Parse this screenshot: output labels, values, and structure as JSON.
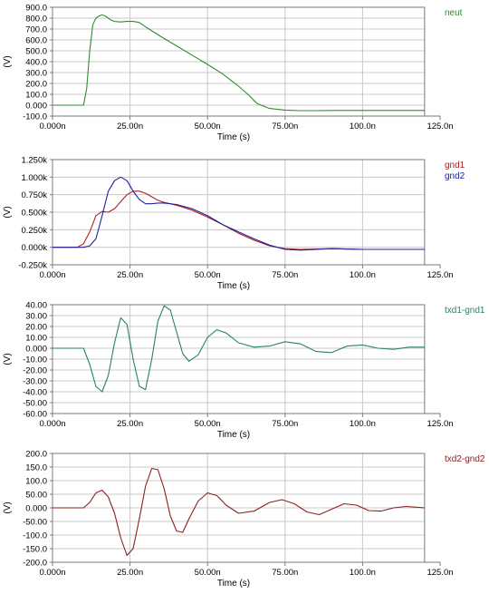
{
  "chart_data": [
    {
      "type": "line",
      "xlabel": "Time (s)",
      "ylabel": "(V)",
      "xlim": [
        0,
        120
      ],
      "ylim": [
        -100,
        900
      ],
      "xticks": [
        0,
        25,
        50,
        75,
        100,
        125
      ],
      "xtick_labels": [
        "0.000n",
        "25.00n",
        "50.00n",
        "75.00n",
        "100.0n",
        "125.0n"
      ],
      "yticks": [
        900,
        800,
        700,
        600,
        500,
        400,
        300,
        200,
        100,
        0,
        -100
      ],
      "ytick_labels": [
        "900.0",
        "800.0",
        "700.0",
        "600.0",
        "500.0",
        "400.0",
        "300.0",
        "200.0",
        "100.0",
        "0.000",
        "-100.0"
      ],
      "grid": true,
      "legend_position": "top-right outside",
      "series": [
        {
          "name": "neut",
          "color": "#2e8b2e",
          "x": [
            0,
            10,
            11,
            12,
            13,
            14,
            15,
            16,
            17,
            18,
            19,
            20,
            22,
            24,
            26,
            28,
            30,
            35,
            40,
            45,
            50,
            55,
            60,
            63,
            66,
            70,
            75,
            80,
            85,
            90,
            100,
            110,
            120
          ],
          "y": [
            0,
            0,
            150,
            500,
            740,
            800,
            820,
            830,
            820,
            800,
            780,
            770,
            765,
            770,
            770,
            760,
            720,
            630,
            545,
            460,
            375,
            285,
            175,
            100,
            15,
            -30,
            -45,
            -50,
            -50,
            -48,
            -48,
            -48,
            -48
          ]
        }
      ]
    },
    {
      "type": "line",
      "xlabel": "Time (s)",
      "ylabel": "(V)",
      "xlim": [
        0,
        120
      ],
      "ylim": [
        -0.25,
        1.25
      ],
      "xticks": [
        0,
        25,
        50,
        75,
        100,
        125
      ],
      "xtick_labels": [
        "0.000n",
        "25.00n",
        "50.00n",
        "75.00n",
        "100.0n",
        "125.0n"
      ],
      "yticks": [
        1.25,
        1.0,
        0.75,
        0.5,
        0.25,
        0,
        -0.25
      ],
      "ytick_labels": [
        "1.250k",
        "1.000k",
        "0.750k",
        "0.500k",
        "0.250k",
        "0.000k",
        "-0.250k"
      ],
      "grid": true,
      "legend_position": "top-right outside",
      "series": [
        {
          "name": "gnd1",
          "color": "#b02020",
          "x": [
            0,
            8,
            10,
            12,
            14,
            16,
            18,
            20,
            22,
            24,
            26,
            28,
            30,
            32,
            34,
            36,
            40,
            45,
            50,
            55,
            60,
            65,
            70,
            75,
            80,
            90,
            100,
            110,
            120
          ],
          "y": [
            0,
            0,
            0.05,
            0.22,
            0.45,
            0.51,
            0.5,
            0.55,
            0.65,
            0.75,
            0.8,
            0.8,
            0.77,
            0.72,
            0.67,
            0.64,
            0.6,
            0.53,
            0.43,
            0.32,
            0.2,
            0.1,
            0.02,
            -0.02,
            -0.03,
            -0.02,
            -0.03,
            -0.03,
            -0.03
          ]
        },
        {
          "name": "gnd2",
          "color": "#2020a0",
          "x": [
            0,
            10,
            12,
            14,
            16,
            18,
            20,
            22,
            24,
            26,
            28,
            30,
            32,
            34,
            36,
            38,
            40,
            45,
            50,
            55,
            60,
            65,
            70,
            75,
            80,
            90,
            100,
            110,
            120
          ],
          "y": [
            0,
            0,
            0.02,
            0.12,
            0.45,
            0.8,
            0.95,
            1.0,
            0.95,
            0.8,
            0.68,
            0.62,
            0.62,
            0.63,
            0.63,
            0.62,
            0.61,
            0.55,
            0.45,
            0.32,
            0.22,
            0.12,
            0.03,
            -0.03,
            -0.04,
            -0.02,
            -0.03,
            -0.03,
            -0.03
          ]
        }
      ]
    },
    {
      "type": "line",
      "xlabel": "Time (s)",
      "ylabel": "(V)",
      "xlim": [
        0,
        120
      ],
      "ylim": [
        -60,
        40
      ],
      "xticks": [
        0,
        25,
        50,
        75,
        100,
        125
      ],
      "xtick_labels": [
        "0.000n",
        "25.00n",
        "50.00n",
        "75.00n",
        "100.0n",
        "125.0n"
      ],
      "yticks": [
        40,
        30,
        20,
        10,
        0,
        -10,
        -20,
        -30,
        -40,
        -50,
        -60
      ],
      "ytick_labels": [
        "40.00",
        "30.00",
        "20.00",
        "10.00",
        "0.000",
        "-10.00",
        "-20.00",
        "-30.00",
        "-40.00",
        "-50.00",
        "-60.00"
      ],
      "grid": true,
      "legend_position": "top-right outside",
      "series": [
        {
          "name": "txd1-gnd1",
          "color": "#2a7f6f",
          "x": [
            0,
            10,
            12,
            14,
            16,
            18,
            20,
            22,
            24,
            26,
            28,
            30,
            32,
            34,
            36,
            38,
            40,
            42,
            44,
            47,
            50,
            53,
            56,
            60,
            65,
            70,
            75,
            80,
            85,
            90,
            95,
            100,
            105,
            110,
            115,
            120
          ],
          "y": [
            0,
            0,
            -15,
            -35,
            -40,
            -25,
            5,
            28,
            22,
            -10,
            -35,
            -38,
            -10,
            25,
            39,
            35,
            15,
            -5,
            -12,
            -6,
            10,
            17,
            14,
            5,
            1,
            2,
            6,
            4,
            -3,
            -4,
            2,
            3,
            0,
            -1,
            1,
            1
          ]
        }
      ]
    },
    {
      "type": "line",
      "xlabel": "Time (s)",
      "ylabel": "(V)",
      "xlim": [
        0,
        120
      ],
      "ylim": [
        -200,
        200
      ],
      "xticks": [
        0,
        25,
        50,
        75,
        100,
        125
      ],
      "xtick_labels": [
        "0.000n",
        "25.00n",
        "50.00n",
        "75.00n",
        "100.0n",
        "125.0n"
      ],
      "yticks": [
        200,
        150,
        100,
        50,
        0,
        -50,
        -100,
        -150,
        -200
      ],
      "ytick_labels": [
        "200.0",
        "150.0",
        "100.0",
        "50.00",
        "0.000",
        "-50.00",
        "-100.0",
        "-150.0",
        "-200.0"
      ],
      "grid": true,
      "legend_position": "top-right outside",
      "series": [
        {
          "name": "txd2-gnd2",
          "color": "#8b2020",
          "x": [
            0,
            10,
            12,
            14,
            16,
            18,
            20,
            22,
            24,
            26,
            28,
            30,
            32,
            34,
            36,
            38,
            40,
            42,
            44,
            47,
            50,
            53,
            56,
            60,
            65,
            70,
            74,
            78,
            82,
            86,
            90,
            94,
            98,
            102,
            106,
            110,
            114,
            118,
            120
          ],
          "y": [
            0,
            0,
            20,
            55,
            65,
            40,
            -20,
            -110,
            -175,
            -150,
            -40,
            80,
            145,
            140,
            70,
            -30,
            -85,
            -90,
            -40,
            25,
            55,
            45,
            10,
            -20,
            -12,
            20,
            30,
            15,
            -15,
            -25,
            -5,
            15,
            10,
            -10,
            -12,
            0,
            5,
            2,
            0
          ]
        }
      ]
    }
  ]
}
